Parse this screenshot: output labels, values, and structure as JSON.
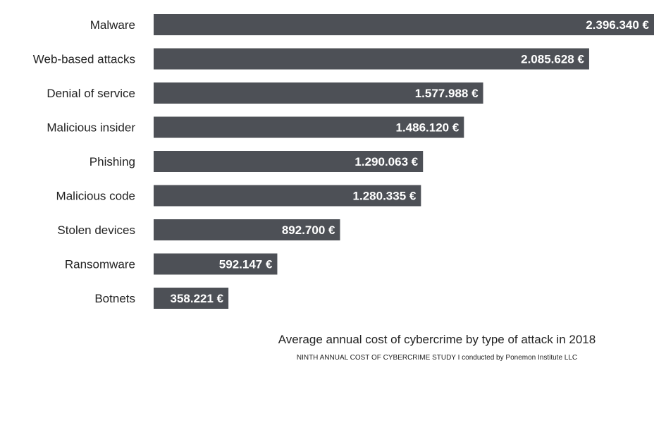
{
  "chart_data": {
    "type": "bar",
    "orientation": "horizontal",
    "title": "Average annual cost of cybercrime by type of attack in 2018",
    "subtitle": "NINTH ANNUAL COST OF CYBERCRIME STUDY I conducted by Ponemon Institute LLC",
    "categories": [
      "Malware",
      "Web-based attacks",
      "Denial of service",
      "Malicious insider",
      "Phishing",
      "Malicious code",
      "Stolen devices",
      "Ransomware",
      "Botnets"
    ],
    "values": [
      2396340,
      2085628,
      1577988,
      1486120,
      1290063,
      1280335,
      892700,
      592147,
      358221
    ],
    "value_labels": [
      "2.396.340 €",
      "2.085.628 €",
      "1.577.988 €",
      "1.486.120 €",
      "1.290.063 €",
      "1.280.335 €",
      "892.700 €",
      "592.147 €",
      "358.221 €"
    ],
    "unit": "€",
    "bar_color": "#4d5056",
    "grid": false,
    "legend": "none"
  }
}
